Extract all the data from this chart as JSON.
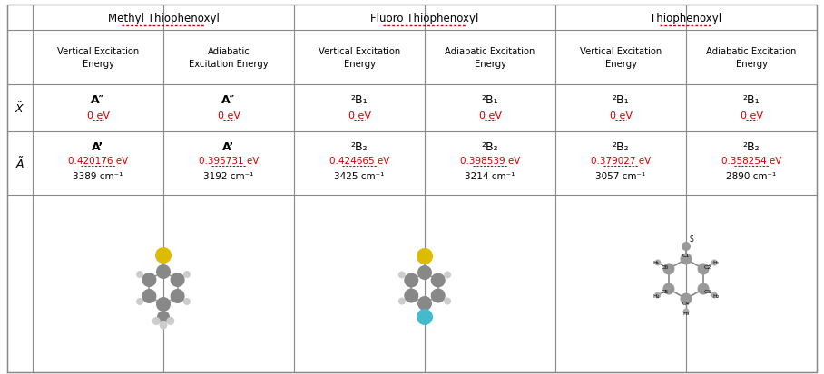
{
  "titles": [
    "Methyl Thiophenoxyl",
    "Fluoro Thiophenoxyl",
    "Thiophenoxyl"
  ],
  "subheaders": [
    "Vertical Excitation\nEnergy",
    "Adiabatic\nExcitation Energy",
    "Vertical Excitation\nEnergy",
    "Adiabatic Excitation\nEnergy",
    "Vertical Excitation\nEnergy",
    "Adiabatic Excitation\nEnergy"
  ],
  "x_row_syms": [
    "A″",
    "A″",
    "²B₁",
    "²B₁",
    "²B₁",
    "²B₁"
  ],
  "x_row_ev": [
    "0 eV",
    "0 eV",
    "0 eV",
    "0 eV",
    "0 eV",
    "0 eV"
  ],
  "a_row_syms": [
    "A’",
    "A’",
    "²B₂",
    "²B₂",
    "²B₂",
    "²B₂"
  ],
  "a_row_ev": [
    "0.420176 eV",
    "0.395731 eV",
    "0.424665 eV",
    "0.398539 eV",
    "0.379027 eV",
    "0.358254 eV"
  ],
  "a_row_cm": [
    "3389 cm⁻¹",
    "3192 cm⁻¹",
    "3425 cm⁻¹",
    "3214 cm⁻¹",
    "3057 cm⁻¹",
    "2890 cm⁻¹"
  ],
  "bg_color": "#ffffff",
  "border_color": "#888888",
  "red_color": "#cc0000",
  "black_color": "#000000",
  "gray_atom": "#888888",
  "yellow_atom": "#ddbb00",
  "cyan_atom": "#44bbcc",
  "white_atom": "#cccccc",
  "fig_w": 9.08,
  "fig_h": 4.14,
  "dpi": 100
}
